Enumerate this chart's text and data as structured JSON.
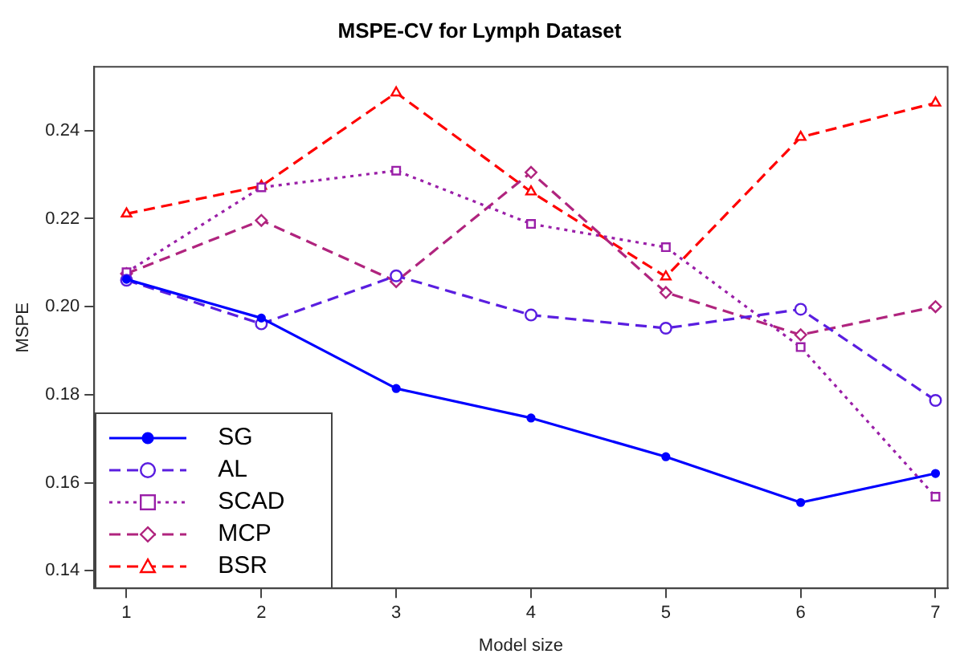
{
  "chart_data": {
    "type": "line",
    "title": "MSPE-CV for Lymph Dataset",
    "xlabel": "Model size",
    "ylabel": "MSPE",
    "x": [
      1,
      2,
      3,
      4,
      5,
      6,
      7
    ],
    "series": [
      {
        "name": "SG",
        "color": "#0000ff",
        "marker": "circle",
        "line_style": "solid",
        "values": [
          0.2062,
          0.1974,
          0.1814,
          0.1747,
          0.1659,
          0.1555,
          0.1621
        ]
      },
      {
        "name": "AL",
        "color": "#5a1ee0",
        "marker": "circle",
        "line_style": "dashed",
        "values": [
          0.206,
          0.1961,
          0.207,
          0.1981,
          0.1951,
          0.1994,
          0.1787
        ]
      },
      {
        "name": "SCAD",
        "color": "#9a1fa8",
        "marker": "square",
        "line_style": "dotted",
        "values": [
          0.2078,
          0.2271,
          0.2309,
          0.2188,
          0.2135,
          0.1908,
          0.1568
        ]
      },
      {
        "name": "MCP",
        "color": "#b0247e",
        "marker": "diamond",
        "line_style": "dashed",
        "values": [
          0.2075,
          0.2196,
          0.2057,
          0.2305,
          0.2032,
          0.1936,
          0.2
        ]
      },
      {
        "name": "BSR",
        "color": "#ff0000",
        "marker": "triangle",
        "line_style": "dashed",
        "values": [
          0.2211,
          0.2274,
          0.2486,
          0.2261,
          0.2068,
          0.2385,
          0.2463
        ]
      }
    ],
    "xlim": [
      0.76,
      7.09
    ],
    "xticks": [
      1,
      2,
      3,
      4,
      5,
      6,
      7
    ],
    "ylim": [
      0.136,
      0.2545
    ],
    "yticks": [
      0.14,
      0.16,
      0.18,
      {
        "value": 0.2,
        "label": "0.20"
      },
      0.22,
      0.24
    ],
    "grid": false,
    "legend": "bottom left"
  }
}
